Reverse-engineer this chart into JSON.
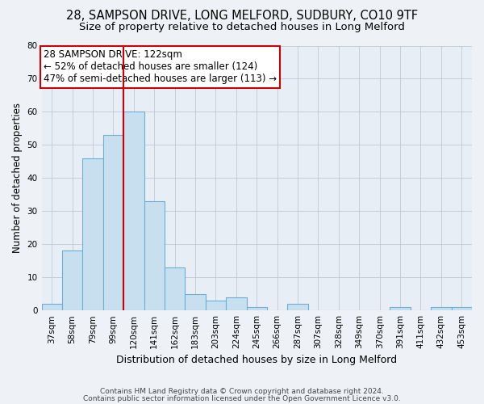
{
  "title": "28, SAMPSON DRIVE, LONG MELFORD, SUDBURY, CO10 9TF",
  "subtitle": "Size of property relative to detached houses in Long Melford",
  "xlabel": "Distribution of detached houses by size in Long Melford",
  "ylabel": "Number of detached properties",
  "categories": [
    "37sqm",
    "58sqm",
    "79sqm",
    "99sqm",
    "120sqm",
    "141sqm",
    "162sqm",
    "183sqm",
    "203sqm",
    "224sqm",
    "245sqm",
    "266sqm",
    "287sqm",
    "307sqm",
    "328sqm",
    "349sqm",
    "370sqm",
    "391sqm",
    "411sqm",
    "432sqm",
    "453sqm"
  ],
  "values": [
    2,
    18,
    46,
    53,
    60,
    33,
    13,
    5,
    3,
    4,
    1,
    0,
    2,
    0,
    0,
    0,
    0,
    1,
    0,
    1,
    1
  ],
  "bar_color": "#c8dff0",
  "bar_edge_color": "#6aafd6",
  "vline_color": "#cc0000",
  "annotation_line1": "28 SAMPSON DRIVE: 122sqm",
  "annotation_line2": "← 52% of detached houses are smaller (124)",
  "annotation_line3": "47% of semi-detached houses are larger (113) →",
  "ylim": [
    0,
    80
  ],
  "yticks": [
    0,
    10,
    20,
    30,
    40,
    50,
    60,
    70,
    80
  ],
  "footer1": "Contains HM Land Registry data © Crown copyright and database right 2024.",
  "footer2": "Contains public sector information licensed under the Open Government Licence v3.0.",
  "bg_color": "#eef2f7",
  "plot_bg_color": "#e8eef5",
  "title_fontsize": 10.5,
  "subtitle_fontsize": 9.5,
  "xlabel_fontsize": 9,
  "ylabel_fontsize": 8.5,
  "tick_fontsize": 7.5,
  "annotation_fontsize": 8.5,
  "footer_fontsize": 6.5
}
